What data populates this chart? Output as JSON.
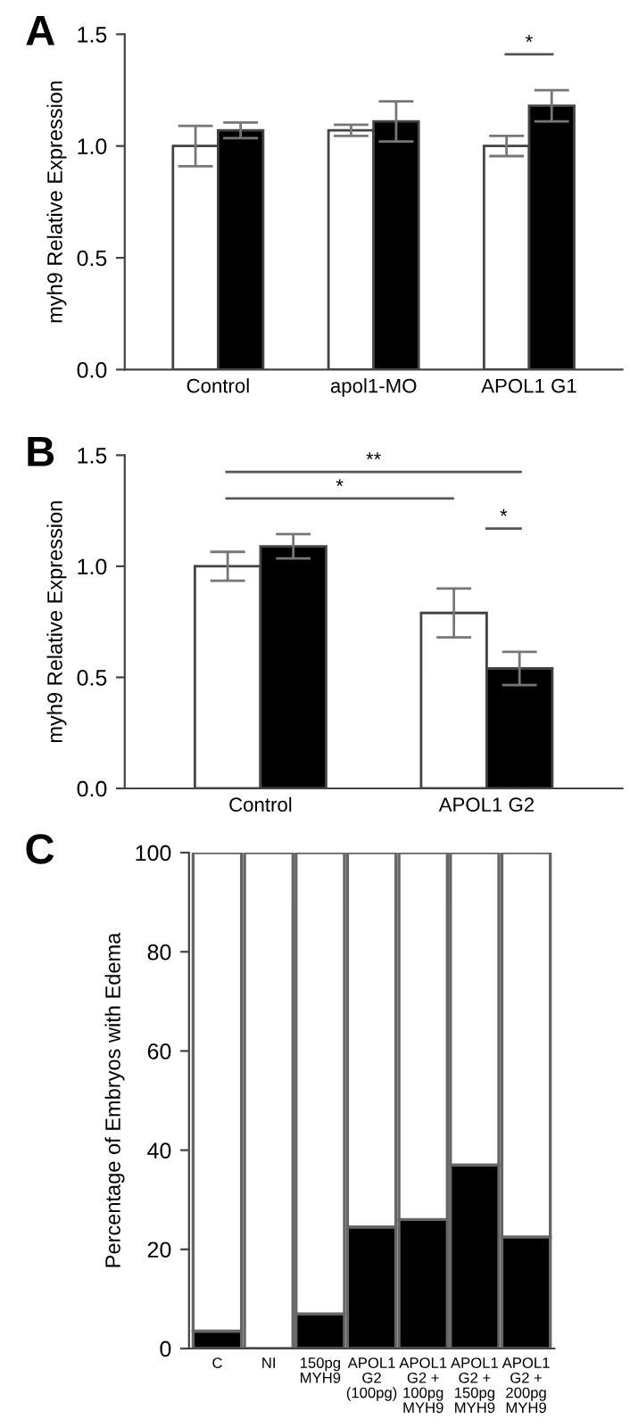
{
  "chart_data": [
    {
      "type": "bar",
      "title": "A",
      "ylabel": "myh9 Relative Expression",
      "categories": [
        "Control",
        "apol1-MO",
        "APOL1 G1"
      ],
      "ylim": [
        0,
        1.5
      ],
      "yticks": [
        {
          "value": 0,
          "label": "0.0"
        },
        {
          "value": 0.5,
          "label": "0.5"
        },
        {
          "value": 1.0,
          "label": "1.0"
        },
        {
          "value": 1.5,
          "label": "1.5"
        }
      ],
      "series": [
        {
          "color": "#ffffff",
          "values": [
            1.0,
            1.07,
            1.0
          ],
          "errors": [
            0.09,
            0.025,
            0.045
          ]
        },
        {
          "color": "#000000",
          "values": [
            1.07,
            1.11,
            1.18
          ],
          "errors": [
            0.035,
            0.09,
            0.07
          ]
        }
      ],
      "annotations": [
        "*"
      ]
    },
    {
      "type": "bar",
      "title": "B",
      "ylabel": "myh9 Relative Expression",
      "categories": [
        "Control",
        "APOL1 G2"
      ],
      "ylim": [
        0,
        1.5
      ],
      "yticks": [
        {
          "value": 0,
          "label": "0.0"
        },
        {
          "value": 0.5,
          "label": "0.5"
        },
        {
          "value": 1.0,
          "label": "1.0"
        },
        {
          "value": 1.5,
          "label": "1.5"
        }
      ],
      "series": [
        {
          "color": "#ffffff",
          "values": [
            1.0,
            0.79
          ],
          "errors": [
            0.065,
            0.11
          ]
        },
        {
          "color": "#000000",
          "values": [
            1.09,
            0.54
          ],
          "errors": [
            0.055,
            0.075
          ]
        }
      ],
      "annotations": [
        "**",
        "*",
        "*"
      ]
    },
    {
      "type": "bar",
      "title": "C",
      "ylabel": "Percentage of Embryos with Edema",
      "stacked": true,
      "categories": [
        "C",
        "NI",
        "150pg\nMYH9",
        "APOL1\nG2\n(100pg)",
        "APOL1\nG2 +\n100pg\nMYH9",
        "APOL1\nG2 +\n150pg\nMYH9",
        "APOL1\nG2 +\n200pg\nMYH9"
      ],
      "ylim": [
        0,
        100
      ],
      "yticks": [
        0,
        20,
        40,
        60,
        80,
        100
      ],
      "series": [
        {
          "color": "#000000",
          "values": [
            3.5,
            0,
            7,
            24.5,
            26,
            37,
            22.5
          ]
        },
        {
          "color": "#ffffff",
          "values": [
            96.5,
            100,
            93,
            75.5,
            74,
            63,
            77.5
          ]
        }
      ]
    }
  ]
}
